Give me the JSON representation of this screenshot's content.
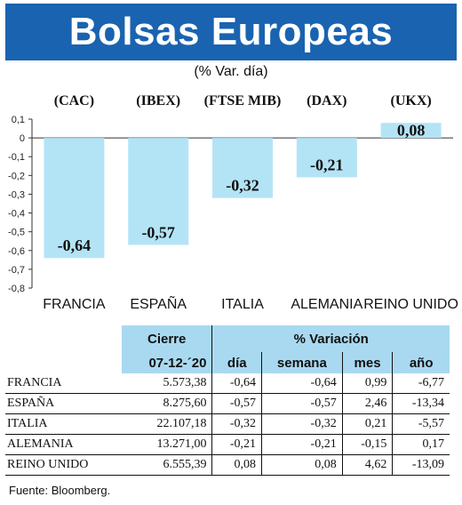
{
  "title": "Bolsas Europeas",
  "subtitle": "(% Var. día)",
  "chart_data": {
    "type": "bar",
    "index_labels": [
      "(CAC)",
      "(IBEX)",
      "(FTSE MIB)",
      "(DAX)",
      "(UKX)"
    ],
    "categories": [
      "FRANCIA",
      "ESPAÑA",
      "ITALIA",
      "ALEMANIA",
      "REINO UNIDO"
    ],
    "values": [
      -0.64,
      -0.57,
      -0.32,
      -0.21,
      0.08
    ],
    "value_labels": [
      "-0,64",
      "-0,57",
      "-0,32",
      "-0,21",
      "0,08"
    ],
    "ylim": [
      -0.8,
      0.1
    ],
    "y_ticks": [
      0.1,
      0,
      -0.1,
      -0.2,
      -0.3,
      -0.4,
      -0.5,
      -0.6,
      -0.7,
      -0.8
    ],
    "y_tick_labels": [
      "0,1",
      "0",
      "-0,1",
      "-0,2",
      "-0,3",
      "-0,4",
      "-0,5",
      "-0,6",
      "-0,7",
      "-0,8"
    ],
    "bar_color": "#b3e4f6",
    "grid": false
  },
  "table": {
    "header_group1": "Cierre",
    "header_group2": "% Variación",
    "columns": [
      "07-12-´20",
      "día",
      "semana",
      "mes",
      "año"
    ],
    "rows": [
      {
        "name": "FRANCIA",
        "cierre": "5.573,38",
        "dia": "-0,64",
        "semana": "-0,64",
        "mes": "0,99",
        "ano": "-6,77"
      },
      {
        "name": "ESPAÑA",
        "cierre": "8.275,60",
        "dia": "-0,57",
        "semana": "-0,57",
        "mes": "2,46",
        "ano": "-13,34"
      },
      {
        "name": "ITALIA",
        "cierre": "22.107,18",
        "dia": "-0,32",
        "semana": "-0,32",
        "mes": "0,21",
        "ano": "-5,57"
      },
      {
        "name": "ALEMANIA",
        "cierre": "13.271,00",
        "dia": "-0,21",
        "semana": "-0,21",
        "mes": "-0,15",
        "ano": "0,17"
      },
      {
        "name": "REINO UNIDO",
        "cierre": "6.555,39",
        "dia": "0,08",
        "semana": "0,08",
        "mes": "4,62",
        "ano": "-13,09"
      }
    ]
  },
  "source": "Fuente: Bloomberg.",
  "colors": {
    "header_bg": "#1a63b0",
    "table_header_bg": "#a9d9f0"
  }
}
